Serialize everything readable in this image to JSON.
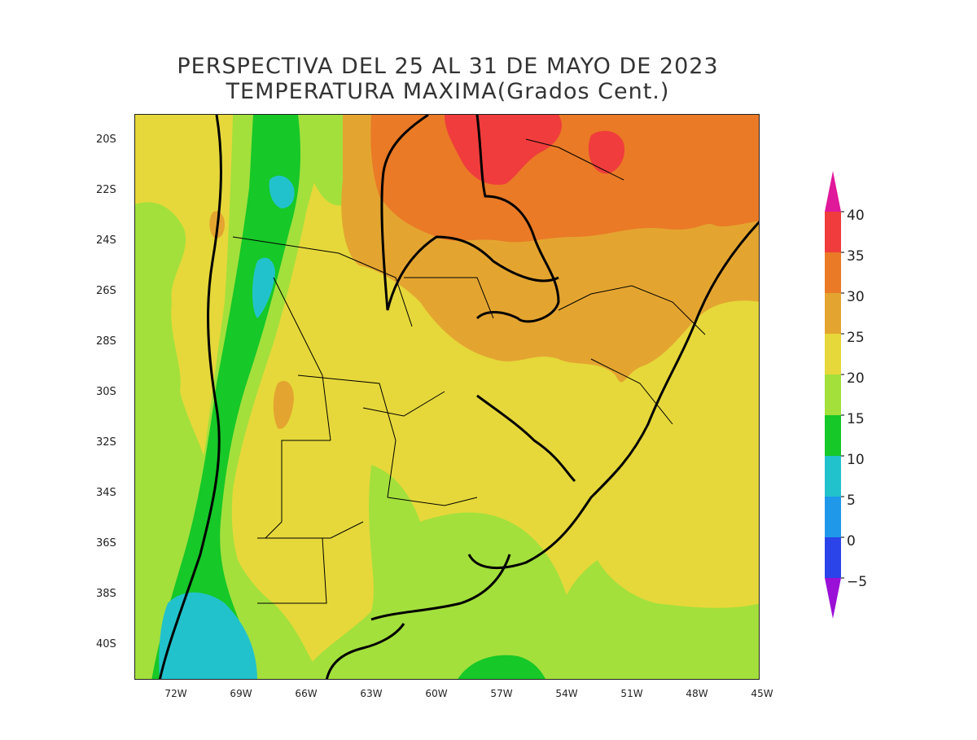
{
  "title": {
    "line1": "PERSPECTIVA DEL 25 AL 31 DE MAYO DE 2023",
    "line2": "TEMPERATURA MAXIMA(Grados Cent.)"
  },
  "lat_labels": [
    "20S",
    "22S",
    "24S",
    "26S",
    "28S",
    "30S",
    "32S",
    "34S",
    "36S",
    "38S",
    "40S"
  ],
  "lon_labels": [
    "72W",
    "69W",
    "66W",
    "63W",
    "60W",
    "57W",
    "54W",
    "51W",
    "48W",
    "45W"
  ],
  "legend": {
    "labels": [
      "40",
      "35",
      "30",
      "25",
      "20",
      "15",
      "10",
      "5",
      "0",
      "−5"
    ],
    "colors": {
      "above_40": "#e0189a",
      "35_40": "#f03c3c",
      "30_35": "#ea7a26",
      "25_30": "#e4a530",
      "20_25": "#e6d83a",
      "15_20": "#a3e03c",
      "10_15": "#16c828",
      "5_10": "#22c2cc",
      "0_5": "#2098ea",
      "-5_0": "#2a44ea",
      "below_-5": "#9a10d6"
    }
  }
}
